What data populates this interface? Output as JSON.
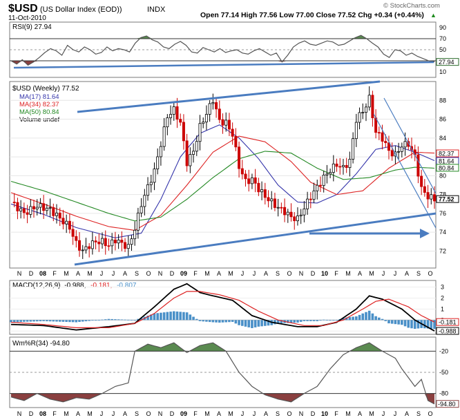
{
  "header": {
    "symbol": "$USD",
    "name": "(US Dollar Index (EOD))",
    "exchange": "INDX",
    "date": "11-Oct-2010",
    "quote": "Open 77.14 High 77.56 Low 77.00 Close 77.52 Chg +0.34 (+0.44%)",
    "quote_arrow": "▲",
    "watermark": "© StockCharts.com"
  },
  "colors": {
    "up": "#000000",
    "down": "#cc0000",
    "ma17": "#3333aa",
    "ma34": "#dd2222",
    "ma50": "#228822",
    "trend": "#4a7cc0",
    "macd_hist": "#4a90c8",
    "overbought_fill": "#5a8a50",
    "oversold_fill": "#8a4040",
    "osc_line": "#555555"
  },
  "chart_data": [
    {
      "type": "line",
      "title": "RSI(9) 27.94",
      "yticks": [
        10,
        30,
        50,
        70,
        90
      ],
      "ylim": [
        0,
        100
      ],
      "overbought": 70,
      "oversold": 30,
      "last_value_label": "27.94",
      "x": [
        0,
        2,
        4,
        6,
        8,
        10,
        12,
        14,
        16,
        18,
        20,
        22,
        24,
        26,
        28,
        30,
        32,
        34,
        36,
        38,
        40,
        42,
        44,
        46,
        48,
        50,
        52,
        54,
        56,
        58,
        60,
        62,
        64,
        66,
        68,
        70,
        72,
        74,
        76,
        78,
        80,
        82,
        84,
        86,
        88,
        90,
        92,
        94,
        96,
        98,
        100,
        102,
        104,
        106,
        108,
        110,
        112,
        114,
        116,
        118,
        120,
        122,
        124,
        126,
        128,
        130,
        132,
        134,
        136,
        138,
        140,
        142,
        144,
        146,
        148,
        150
      ],
      "series": [
        {
          "values": [
            30,
            24,
            32,
            22,
            28,
            36,
            45,
            52,
            48,
            40,
            58,
            50,
            46,
            55,
            50,
            42,
            45,
            55,
            48,
            52,
            50,
            46,
            62,
            72,
            75,
            68,
            64,
            55,
            52,
            60,
            65,
            58,
            46,
            44,
            54,
            50,
            46,
            52,
            45,
            48,
            50,
            44,
            42,
            48,
            52,
            46,
            40,
            44,
            28,
            40,
            55,
            62,
            66,
            60,
            58,
            62,
            66,
            64,
            58,
            60,
            66,
            72,
            76,
            70,
            62,
            55,
            42,
            36,
            50,
            48,
            40,
            44,
            38,
            34,
            30,
            28
          ]
        }
      ]
    },
    {
      "type": "line",
      "title": "$USD (Weekly) 77.52",
      "legend": [
        "MA(17) 81.64",
        "MA(34) 82.37",
        "MA(50) 80.84",
        "Volume undef"
      ],
      "yticks": [
        72,
        74,
        76,
        78,
        80,
        82,
        84,
        86,
        88
      ],
      "ylim": [
        70.2,
        90.0
      ],
      "x_ticks": [
        "N",
        "D",
        "08",
        "F",
        "M",
        "A",
        "M",
        "J",
        "J",
        "A",
        "S",
        "O",
        "N",
        "D",
        "09",
        "F",
        "M",
        "A",
        "M",
        "J",
        "J",
        "A",
        "S",
        "O",
        "N",
        "D",
        "10",
        "F",
        "M",
        "A",
        "M",
        "J",
        "J",
        "A",
        "S",
        "O"
      ],
      "value_tags": [
        {
          "label": "82.37",
          "value": 82.37,
          "color": "#dd2222"
        },
        {
          "label": "81.64",
          "value": 81.64,
          "color": "#3333aa"
        },
        {
          "label": "80.84",
          "value": 80.84,
          "color": "#228822"
        },
        {
          "label": "77.52",
          "value": 77.52,
          "color": "#000000"
        }
      ],
      "close_anchors": [
        [
          0,
          77.2
        ],
        [
          4,
          76.0
        ],
        [
          8,
          76.8
        ],
        [
          12,
          76.4
        ],
        [
          14,
          75.8
        ],
        [
          18,
          74.5
        ],
        [
          20,
          72.8
        ],
        [
          22,
          72.0
        ],
        [
          24,
          72.6
        ],
        [
          26,
          73.0
        ],
        [
          28,
          73.0
        ],
        [
          30,
          72.6
        ],
        [
          32,
          73.2
        ],
        [
          34,
          72.8
        ],
        [
          36,
          72.4
        ],
        [
          38,
          74.4
        ],
        [
          40,
          77.0
        ],
        [
          42,
          78.8
        ],
        [
          44,
          80.5
        ],
        [
          46,
          83.4
        ],
        [
          48,
          86.3
        ],
        [
          50,
          87.0
        ],
        [
          52,
          85.6
        ],
        [
          54,
          81.4
        ],
        [
          56,
          82.6
        ],
        [
          58,
          85.2
        ],
        [
          60,
          86.6
        ],
        [
          62,
          88.1
        ],
        [
          64,
          85.8
        ],
        [
          66,
          85.6
        ],
        [
          68,
          84.4
        ],
        [
          70,
          81.0
        ],
        [
          72,
          79.4
        ],
        [
          74,
          79.6
        ],
        [
          76,
          78.6
        ],
        [
          78,
          77.8
        ],
        [
          80,
          77.2
        ],
        [
          82,
          76.6
        ],
        [
          84,
          76.2
        ],
        [
          86,
          75.6
        ],
        [
          88,
          75.4
        ],
        [
          90,
          76.6
        ],
        [
          92,
          77.8
        ],
        [
          94,
          78.8
        ],
        [
          96,
          79.8
        ],
        [
          98,
          80.6
        ],
        [
          100,
          81.2
        ],
        [
          102,
          80.8
        ],
        [
          104,
          81.6
        ],
        [
          106,
          86.0
        ],
        [
          108,
          86.8
        ],
        [
          110,
          88.2
        ],
        [
          112,
          84.6
        ],
        [
          114,
          84.0
        ],
        [
          116,
          82.6
        ],
        [
          118,
          82.2
        ],
        [
          120,
          83.2
        ],
        [
          122,
          83.4
        ],
        [
          124,
          82.0
        ],
        [
          126,
          78.6
        ],
        [
          128,
          77.8
        ],
        [
          130,
          77.5
        ]
      ],
      "series": [
        {
          "name": "MA(17)",
          "values": [
            [
              0,
              77.0
            ],
            [
              10,
              75.9
            ],
            [
              20,
              74.5
            ],
            [
              32,
              73.4
            ],
            [
              40,
              73.9
            ],
            [
              46,
              77.5
            ],
            [
              52,
              82.0
            ],
            [
              58,
              84.5
            ],
            [
              64,
              85.4
            ],
            [
              70,
              84.0
            ],
            [
              76,
              81.8
            ],
            [
              82,
              79.0
            ],
            [
              88,
              77.2
            ],
            [
              94,
              77.1
            ],
            [
              100,
              78.0
            ],
            [
              106,
              80.2
            ],
            [
              112,
              82.8
            ],
            [
              118,
              83.2
            ],
            [
              124,
              82.5
            ],
            [
              130,
              81.6
            ]
          ]
        },
        {
          "name": "MA(34)",
          "values": [
            [
              0,
              78.2
            ],
            [
              10,
              77.0
            ],
            [
              20,
              75.7
            ],
            [
              30,
              74.6
            ],
            [
              38,
              74.2
            ],
            [
              46,
              75.8
            ],
            [
              54,
              79.0
            ],
            [
              62,
              82.5
            ],
            [
              70,
              84.2
            ],
            [
              78,
              83.6
            ],
            [
              86,
              81.5
            ],
            [
              92,
              79.3
            ],
            [
              100,
              78.0
            ],
            [
              108,
              78.4
            ],
            [
              116,
              80.8
            ],
            [
              124,
              82.5
            ],
            [
              130,
              82.4
            ]
          ]
        },
        {
          "name": "MA(50)",
          "values": [
            [
              0,
              79.4
            ],
            [
              10,
              78.4
            ],
            [
              20,
              77.2
            ],
            [
              30,
              76.0
            ],
            [
              38,
              75.2
            ],
            [
              46,
              75.6
            ],
            [
              54,
              77.5
            ],
            [
              62,
              79.8
            ],
            [
              70,
              81.8
            ],
            [
              78,
              82.6
            ],
            [
              86,
              82.4
            ],
            [
              94,
              80.8
            ],
            [
              102,
              79.6
            ],
            [
              110,
              79.8
            ],
            [
              118,
              80.6
            ],
            [
              124,
              80.9
            ],
            [
              130,
              80.8
            ]
          ]
        }
      ]
    },
    {
      "type": "bar",
      "title": "MACD(12,26,9)",
      "values_text": [
        "-0.988,",
        "-0.181,",
        "-0.807"
      ],
      "yticks": [
        -1,
        0,
        1,
        2,
        3
      ],
      "ylim": [
        -1.3,
        3.6
      ],
      "value_tags": [
        {
          "label": "-0.181",
          "value": -0.181,
          "color": "#dd2222"
        },
        {
          "label": "-0.988",
          "value": -0.988,
          "color": "#000000"
        }
      ],
      "series": [
        {
          "name": "MACD",
          "values": [
            [
              0,
              -0.4
            ],
            [
              10,
              -0.5
            ],
            [
              20,
              -0.9
            ],
            [
              30,
              -0.6
            ],
            [
              38,
              -0.3
            ],
            [
              44,
              1.2
            ],
            [
              50,
              2.8
            ],
            [
              54,
              3.3
            ],
            [
              58,
              2.5
            ],
            [
              62,
              2.2
            ],
            [
              68,
              1.8
            ],
            [
              74,
              0.4
            ],
            [
              80,
              -0.2
            ],
            [
              88,
              -0.6
            ],
            [
              94,
              -0.6
            ],
            [
              100,
              -0.2
            ],
            [
              106,
              1.0
            ],
            [
              110,
              2.2
            ],
            [
              114,
              1.9
            ],
            [
              120,
              1.0
            ],
            [
              124,
              0.0
            ],
            [
              130,
              -0.99
            ]
          ]
        },
        {
          "name": "Signal",
          "values": [
            [
              0,
              -0.2
            ],
            [
              10,
              -0.4
            ],
            [
              20,
              -0.7
            ],
            [
              30,
              -0.7
            ],
            [
              38,
              -0.3
            ],
            [
              44,
              0.6
            ],
            [
              50,
              2.0
            ],
            [
              54,
              2.6
            ],
            [
              58,
              2.6
            ],
            [
              64,
              2.3
            ],
            [
              70,
              1.8
            ],
            [
              76,
              0.8
            ],
            [
              82,
              0.0
            ],
            [
              90,
              -0.5
            ],
            [
              96,
              -0.5
            ],
            [
              102,
              0.0
            ],
            [
              108,
              1.0
            ],
            [
              112,
              1.7
            ],
            [
              116,
              1.9
            ],
            [
              122,
              1.2
            ],
            [
              126,
              0.4
            ],
            [
              130,
              -0.18
            ]
          ]
        }
      ]
    },
    {
      "type": "line",
      "title": "Wm%R(34) -94.80",
      "yticks": [
        -20,
        -50,
        -80
      ],
      "ylim": [
        -100,
        0
      ],
      "last_value_label": "-94.80",
      "series": [
        {
          "values": [
            [
              0,
              -85
            ],
            [
              4,
              -90
            ],
            [
              8,
              -80
            ],
            [
              12,
              -88
            ],
            [
              16,
              -92
            ],
            [
              20,
              -86
            ],
            [
              24,
              -88
            ],
            [
              28,
              -80
            ],
            [
              32,
              -70
            ],
            [
              36,
              -65
            ],
            [
              38,
              -20
            ],
            [
              42,
              -10
            ],
            [
              46,
              -15
            ],
            [
              50,
              -8
            ],
            [
              54,
              -22
            ],
            [
              58,
              -12
            ],
            [
              62,
              -8
            ],
            [
              66,
              -20
            ],
            [
              70,
              -50
            ],
            [
              74,
              -70
            ],
            [
              78,
              -82
            ],
            [
              82,
              -88
            ],
            [
              86,
              -92
            ],
            [
              90,
              -80
            ],
            [
              94,
              -70
            ],
            [
              98,
              -45
            ],
            [
              102,
              -25
            ],
            [
              106,
              -15
            ],
            [
              110,
              -8
            ],
            [
              114,
              -20
            ],
            [
              118,
              -30
            ],
            [
              120,
              -45
            ],
            [
              124,
              -70
            ],
            [
              126,
              -60
            ],
            [
              128,
              -90
            ],
            [
              130,
              -95
            ]
          ]
        }
      ]
    }
  ]
}
